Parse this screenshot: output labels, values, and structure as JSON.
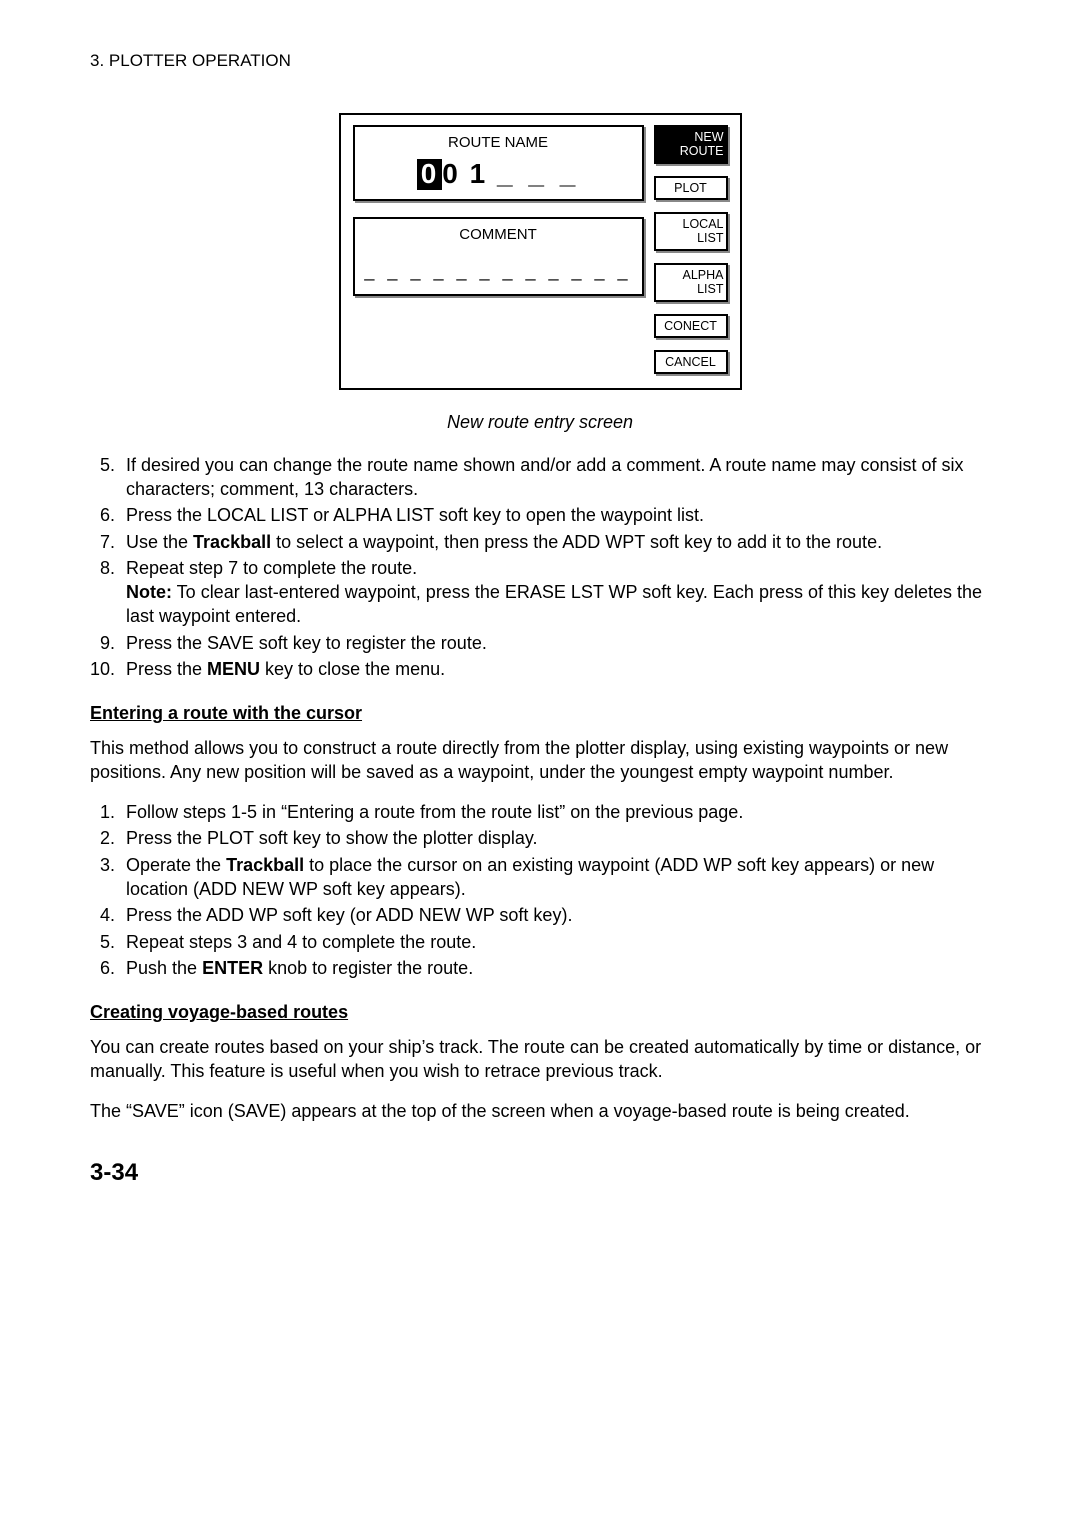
{
  "header": "3. PLOTTER OPERATION",
  "figure": {
    "routeNameLabel": "ROUTE NAME",
    "routeNameVal": {
      "boxed": "0",
      "rest": "0 1",
      "dashes": "_ _ _"
    },
    "commentLabel": "COMMENT",
    "commentDashes": "_ _ _ _ _ _ _ _ _ _ _ _",
    "softkeys": [
      "NEW\nROUTE",
      "PLOT",
      "LOCAL\nLIST",
      "ALPHA\nLIST",
      "CONECT",
      "CANCEL"
    ]
  },
  "caption": "New route entry screen",
  "steps1": [
    "If desired you can change the route name shown and/or add a comment. A route name may consist of six characters; comment, 13 characters.",
    "Press the LOCAL LIST or ALPHA LIST soft key to open the waypoint list.",
    {
      "pre": "Use the ",
      "bold": "Trackball",
      "post": " to select a waypoint, then press the ADD WPT soft key to add it to the route."
    },
    {
      "text": "Repeat step 7 to complete the route.",
      "noteBold": "Note:",
      "noteRest": " To clear last-entered waypoint, press the ERASE LST WP soft key. Each press of this key deletes the last waypoint entered."
    },
    "Press the SAVE soft key to register the route.",
    {
      "pre": "Press the ",
      "bold": "MENU",
      "post": " key to close the menu."
    }
  ],
  "sub1": "Entering a route with the cursor",
  "para1": "This method allows you to construct a route directly from the plotter display, using existing waypoints or new positions. Any new position will be saved as a waypoint, under the youngest empty waypoint number.",
  "steps2": [
    "Follow steps 1-5 in “Entering a route from the route list” on the previous page.",
    "Press the PLOT soft key to show the plotter display.",
    {
      "pre": "Operate the ",
      "bold": "Trackball",
      "post": " to place the cursor on an existing waypoint (ADD WP soft key appears) or new location (ADD NEW WP soft key appears)."
    },
    "Press the ADD WP soft key (or ADD NEW WP soft key).",
    "Repeat steps 3 and 4 to complete the route.",
    {
      "pre": "Push the ",
      "bold": "ENTER",
      "post": " knob to register the route."
    }
  ],
  "sub2": "Creating voyage-based routes",
  "para2": "You can create routes based on your ship’s track. The route can be created automatically by time or distance, or manually. This feature is useful when you wish to retrace previous track.",
  "para3": "The “SAVE” icon (SAVE) appears at the top of the screen when a voyage-based route is being created.",
  "pageNum": "3-34"
}
